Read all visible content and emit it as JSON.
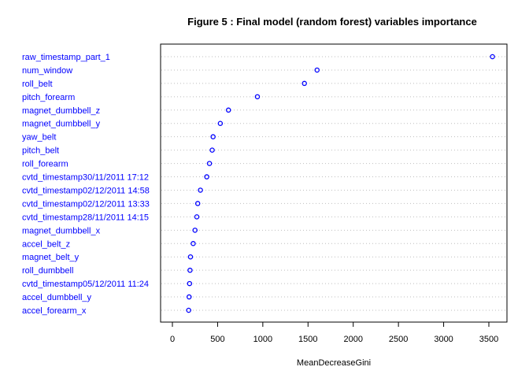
{
  "chart_data": {
    "type": "scatter",
    "title": "Figure 5 : Final model (random forest) variables importance",
    "xlabel": "MeanDecreaseGini",
    "ylabel": "",
    "xlim": [
      -150,
      3600
    ],
    "xticks": [
      0,
      500,
      1000,
      1500,
      2000,
      2500,
      3000,
      3500
    ],
    "grid": "dotted horizontal",
    "label_color": "#0000ff",
    "point_color": "#0000ff",
    "categories": [
      "raw_timestamp_part_1",
      "num_window",
      "roll_belt",
      "pitch_forearm",
      "magnet_dumbbell_z",
      "magnet_dumbbell_y",
      "yaw_belt",
      "pitch_belt",
      "roll_forearm",
      "cvtd_timestamp30/11/2011 17:12",
      "cvtd_timestamp02/12/2011 14:58",
      "cvtd_timestamp02/12/2011 13:33",
      "cvtd_timestamp28/11/2011 14:15",
      "magnet_dumbbell_x",
      "accel_belt_z",
      "magnet_belt_y",
      "roll_dumbbell",
      "cvtd_timestamp05/12/2011 11:24",
      "accel_dumbbell_y",
      "accel_forearm_x"
    ],
    "values": [
      3540,
      1600,
      1460,
      940,
      620,
      530,
      450,
      440,
      410,
      380,
      310,
      280,
      270,
      250,
      230,
      200,
      195,
      190,
      185,
      180
    ]
  }
}
